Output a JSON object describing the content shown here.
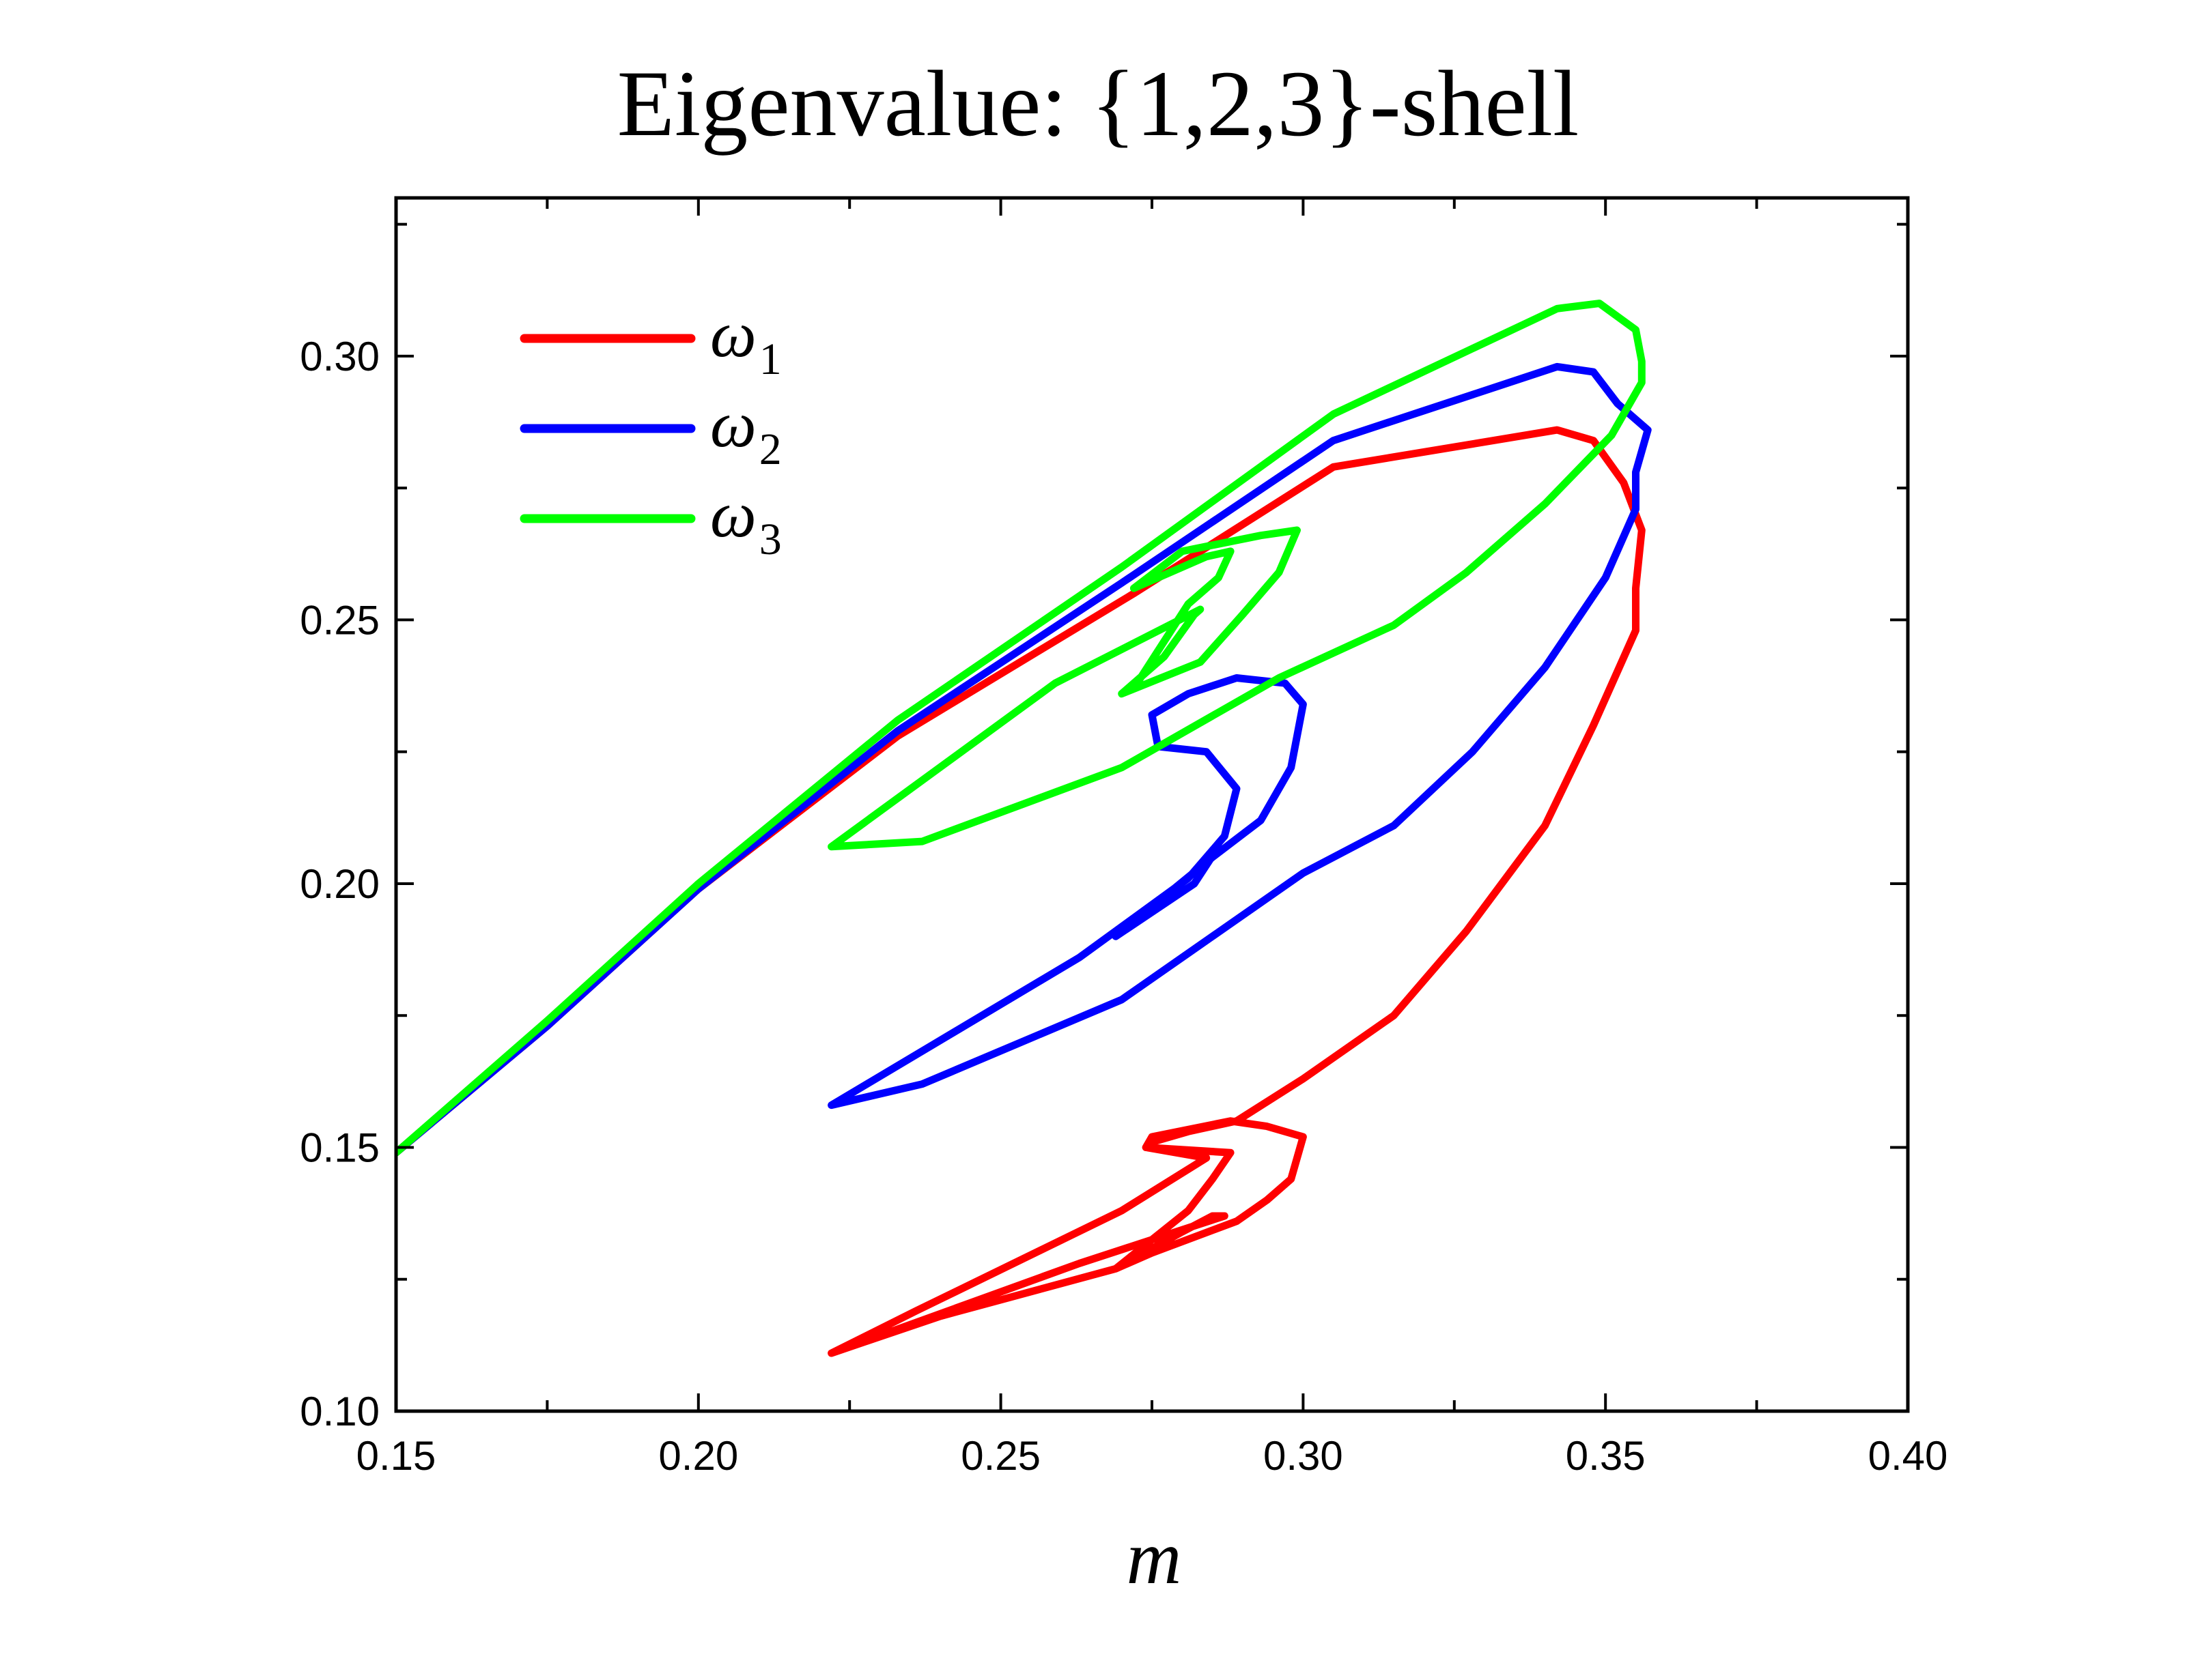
{
  "chart_data": {
    "type": "line",
    "title": "Eigenvalue: {1,2,3}-shell",
    "xlabel": "m",
    "ylabel": "",
    "xlim": [
      0.15,
      0.4
    ],
    "ylim": [
      0.1,
      0.33
    ],
    "x_ticks": [
      "0.15",
      "0.20",
      "0.25",
      "0.30",
      "0.35",
      "0.40"
    ],
    "y_ticks": [
      "0.10",
      "0.15",
      "0.20",
      "0.25",
      "0.30"
    ],
    "legend_position": "top-left",
    "series": [
      {
        "name": "ω1",
        "symbol": "ω",
        "subscript": "1",
        "color": "#ff0000",
        "points": [
          [
            0.15,
            0.149
          ],
          [
            0.175,
            0.173
          ],
          [
            0.2,
            0.199
          ],
          [
            0.233,
            0.228
          ],
          [
            0.272,
            0.255
          ],
          [
            0.305,
            0.279
          ],
          [
            0.342,
            0.286
          ],
          [
            0.348,
            0.284
          ],
          [
            0.353,
            0.276
          ],
          [
            0.356,
            0.267
          ],
          [
            0.355,
            0.256
          ],
          [
            0.355,
            0.248
          ],
          [
            0.348,
            0.23
          ],
          [
            0.34,
            0.211
          ],
          [
            0.327,
            0.191
          ],
          [
            0.315,
            0.175
          ],
          [
            0.3,
            0.163
          ],
          [
            0.289,
            0.155
          ],
          [
            0.281,
            0.153
          ],
          [
            0.275,
            0.151
          ],
          [
            0.274,
            0.15
          ],
          [
            0.288,
            0.149
          ],
          [
            0.285,
            0.144
          ],
          [
            0.281,
            0.138
          ],
          [
            0.269,
            0.127
          ],
          [
            0.24,
            0.118
          ],
          [
            0.222,
            0.111
          ],
          [
            0.263,
            0.128
          ],
          [
            0.287,
            0.137
          ],
          [
            0.285,
            0.137
          ],
          [
            0.28,
            0.134
          ],
          [
            0.269,
            0.127
          ],
          [
            0.275,
            0.13
          ],
          [
            0.289,
            0.136
          ],
          [
            0.294,
            0.14
          ],
          [
            0.298,
            0.144
          ],
          [
            0.3,
            0.152
          ],
          [
            0.294,
            0.154
          ],
          [
            0.288,
            0.155
          ],
          [
            0.275,
            0.152
          ],
          [
            0.274,
            0.15
          ],
          [
            0.284,
            0.148
          ],
          [
            0.27,
            0.138
          ],
          [
            0.236,
            0.119
          ],
          [
            0.222,
            0.111
          ]
        ]
      },
      {
        "name": "ω2",
        "symbol": "ω",
        "subscript": "2",
        "color": "#0000ff",
        "points": [
          [
            0.15,
            0.149
          ],
          [
            0.175,
            0.173
          ],
          [
            0.2,
            0.199
          ],
          [
            0.233,
            0.229
          ],
          [
            0.27,
            0.257
          ],
          [
            0.305,
            0.284
          ],
          [
            0.342,
            0.298
          ],
          [
            0.348,
            0.297
          ],
          [
            0.352,
            0.291
          ],
          [
            0.357,
            0.286
          ],
          [
            0.355,
            0.278
          ],
          [
            0.355,
            0.271
          ],
          [
            0.35,
            0.258
          ],
          [
            0.34,
            0.241
          ],
          [
            0.328,
            0.225
          ],
          [
            0.315,
            0.211
          ],
          [
            0.3,
            0.202
          ],
          [
            0.27,
            0.178
          ],
          [
            0.237,
            0.162
          ],
          [
            0.222,
            0.158
          ],
          [
            0.263,
            0.186
          ],
          [
            0.281,
            0.201
          ],
          [
            0.287,
            0.209
          ],
          [
            0.289,
            0.218
          ],
          [
            0.284,
            0.225
          ],
          [
            0.276,
            0.226
          ],
          [
            0.275,
            0.232
          ],
          [
            0.281,
            0.236
          ],
          [
            0.289,
            0.239
          ],
          [
            0.297,
            0.238
          ],
          [
            0.3,
            0.234
          ],
          [
            0.298,
            0.222
          ],
          [
            0.293,
            0.212
          ],
          [
            0.285,
            0.205
          ],
          [
            0.269,
            0.19
          ],
          [
            0.282,
            0.2
          ],
          [
            0.286,
            0.207
          ]
        ]
      },
      {
        "name": "ω3",
        "symbol": "ω",
        "subscript": "3",
        "color": "#00ff00",
        "points": [
          [
            0.15,
            0.149
          ],
          [
            0.175,
            0.174
          ],
          [
            0.2,
            0.2
          ],
          [
            0.233,
            0.231
          ],
          [
            0.27,
            0.26
          ],
          [
            0.305,
            0.289
          ],
          [
            0.342,
            0.309
          ],
          [
            0.349,
            0.31
          ],
          [
            0.355,
            0.305
          ],
          [
            0.356,
            0.299
          ],
          [
            0.356,
            0.295
          ],
          [
            0.351,
            0.285
          ],
          [
            0.34,
            0.272
          ],
          [
            0.327,
            0.259
          ],
          [
            0.315,
            0.249
          ],
          [
            0.296,
            0.239
          ],
          [
            0.27,
            0.222
          ],
          [
            0.237,
            0.208
          ],
          [
            0.222,
            0.207
          ],
          [
            0.259,
            0.238
          ],
          [
            0.283,
            0.252
          ],
          [
            0.282,
            0.251
          ],
          [
            0.277,
            0.243
          ],
          [
            0.27,
            0.236
          ],
          [
            0.283,
            0.242
          ],
          [
            0.29,
            0.251
          ],
          [
            0.296,
            0.259
          ],
          [
            0.299,
            0.267
          ],
          [
            0.293,
            0.266
          ],
          [
            0.28,
            0.263
          ],
          [
            0.272,
            0.256
          ],
          [
            0.284,
            0.262
          ],
          [
            0.288,
            0.263
          ],
          [
            0.286,
            0.258
          ],
          [
            0.281,
            0.253
          ],
          [
            0.272,
            0.237
          ]
        ]
      }
    ]
  }
}
